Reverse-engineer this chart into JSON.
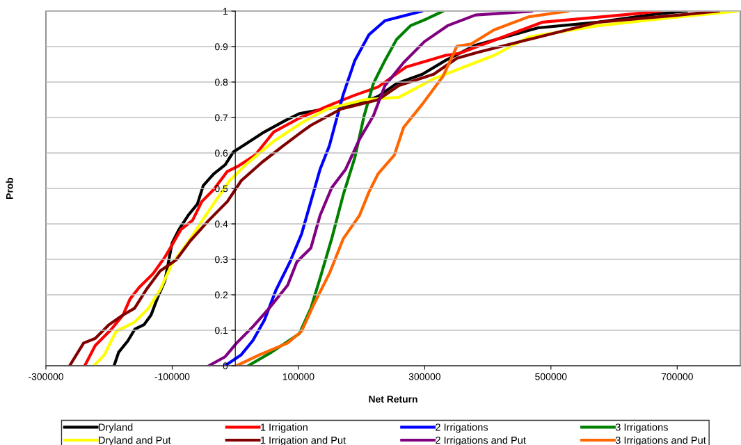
{
  "chart_data": {
    "type": "line",
    "xlabel": "Net Return",
    "ylabel": "Prob",
    "xlim": [
      -300000,
      800000
    ],
    "ylim": [
      0,
      1
    ],
    "xticks": [
      -300000,
      -100000,
      100000,
      300000,
      500000,
      700000
    ],
    "yticks": [
      0,
      0.1,
      0.2,
      0.3,
      0.4,
      0.5,
      0.6,
      0.7,
      0.8,
      0.9,
      1
    ],
    "grid": "y",
    "legend": "bottom",
    "marker": "none",
    "line_style": "solid",
    "series": [
      {
        "name": "Dryland",
        "color": "#000000",
        "x": [
          -192000,
          -184800,
          -170200,
          -159200,
          -144400,
          -133400,
          -122400,
          -111400,
          -105800,
          -100300,
          -89300,
          -74700,
          -60000,
          -50700,
          -34200,
          -15900,
          -3000,
          17100,
          42900,
          79600,
          101700,
          204500,
          226500,
          255900,
          296400,
          333100,
          380800,
          479900,
          575500,
          667300,
          715100
        ],
        "values": [
          0,
          0.038,
          0.07,
          0.103,
          0.116,
          0.143,
          0.195,
          0.24,
          0.293,
          0.345,
          0.384,
          0.424,
          0.456,
          0.508,
          0.541,
          0.567,
          0.603,
          0.626,
          0.656,
          0.692,
          0.711,
          0.744,
          0.76,
          0.796,
          0.822,
          0.861,
          0.904,
          0.953,
          0.969,
          0.992,
          1
        ]
      },
      {
        "name": "1 Irrigation",
        "color": "#ff0000",
        "x": [
          -238500,
          -221900,
          -196300,
          -177900,
          -166800,
          -152200,
          -130100,
          -111700,
          -100700,
          -86100,
          -67700,
          -53000,
          -34600,
          -12600,
          5700,
          31500,
          60800,
          101300,
          152700,
          189400,
          226100,
          270200,
          332700,
          354700,
          487000,
          611800,
          674300
        ],
        "values": [
          0,
          0.057,
          0.103,
          0.143,
          0.188,
          0.221,
          0.26,
          0.306,
          0.339,
          0.384,
          0.41,
          0.463,
          0.496,
          0.548,
          0.564,
          0.594,
          0.659,
          0.698,
          0.737,
          0.763,
          0.786,
          0.842,
          0.875,
          0.881,
          0.969,
          0.989,
          1
        ]
      },
      {
        "name": "2 Irrigations",
        "color": "#0000ff",
        "x": [
          -16300,
          9500,
          27800,
          46200,
          64600,
          86600,
          104900,
          119700,
          134300,
          149000,
          160000,
          171000,
          189400,
          211500,
          237100,
          296000
        ],
        "values": [
          0,
          0.031,
          0.071,
          0.129,
          0.214,
          0.293,
          0.371,
          0.463,
          0.554,
          0.62,
          0.693,
          0.765,
          0.861,
          0.933,
          0.973,
          1
        ]
      },
      {
        "name": "3 Irrigations",
        "color": "#008000",
        "x": [
          20500,
          57200,
          101300,
          119700,
          134300,
          152700,
          171000,
          189400,
          204100,
          218800,
          237100,
          255500,
          277600,
          303200,
          329000
        ],
        "values": [
          0,
          0.038,
          0.09,
          0.162,
          0.247,
          0.358,
          0.482,
          0.587,
          0.705,
          0.796,
          0.861,
          0.92,
          0.959,
          0.978,
          1
        ]
      },
      {
        "name": "Dryland and Put",
        "color": "#ffff00",
        "x": [
          -223800,
          -207300,
          -188900,
          -159600,
          -137500,
          -119100,
          -100700,
          -71400,
          -42000,
          -8900,
          16700,
          60800,
          104900,
          145300,
          204100,
          259200,
          314300,
          380400,
          409800,
          464900,
          575100,
          703700,
          795500
        ],
        "values": [
          0,
          0.031,
          0.097,
          0.123,
          0.162,
          0.214,
          0.286,
          0.358,
          0.437,
          0.522,
          0.567,
          0.633,
          0.685,
          0.724,
          0.75,
          0.757,
          0.809,
          0.855,
          0.875,
          0.927,
          0.959,
          0.984,
          1
        ]
      },
      {
        "name": "1 Irrigation and Put",
        "color": "#800000",
        "x": [
          -262400,
          -240300,
          -221900,
          -199900,
          -177900,
          -159600,
          -141200,
          -119100,
          -93400,
          -71400,
          -42000,
          -12600,
          9500,
          42500,
          75600,
          104900,
          119700,
          167400,
          226100,
          259200,
          314300,
          351100,
          384200,
          464900,
          575100,
          703700,
          766100
        ],
        "values": [
          0,
          0.064,
          0.077,
          0.116,
          0.143,
          0.162,
          0.214,
          0.267,
          0.299,
          0.352,
          0.41,
          0.463,
          0.522,
          0.574,
          0.62,
          0.659,
          0.678,
          0.724,
          0.75,
          0.79,
          0.822,
          0.867,
          0.884,
          0.92,
          0.969,
          0.989,
          1
        ]
      },
      {
        "name": "2 Irrigations and Put",
        "color": "#800080",
        "x": [
          -42000,
          -16300,
          2100,
          27800,
          53600,
          82900,
          97600,
          119700,
          134300,
          152700,
          174800,
          196800,
          218800,
          237100,
          266600,
          299600,
          336300,
          380400,
          470400
        ],
        "values": [
          0,
          0.025,
          0.064,
          0.11,
          0.162,
          0.227,
          0.293,
          0.332,
          0.424,
          0.502,
          0.554,
          0.639,
          0.705,
          0.79,
          0.855,
          0.914,
          0.959,
          0.989,
          1
        ]
      },
      {
        "name": "3 Irrigations and Put",
        "color": "#ff6600",
        "x": [
          2100,
          38800,
          82900,
          104900,
          123300,
          149000,
          171000,
          196800,
          211500,
          226100,
          251900,
          266600,
          296000,
          329000,
          351100,
          373100,
          409800,
          464900,
          527400
        ],
        "values": [
          0,
          0.031,
          0.064,
          0.097,
          0.169,
          0.26,
          0.358,
          0.424,
          0.489,
          0.541,
          0.594,
          0.672,
          0.737,
          0.816,
          0.901,
          0.907,
          0.947,
          0.984,
          1
        ]
      }
    ]
  }
}
